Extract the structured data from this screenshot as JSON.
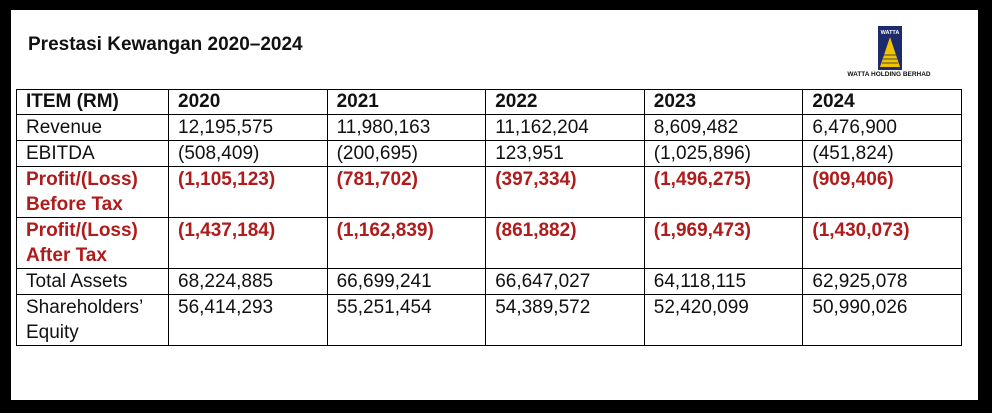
{
  "title": "Prestasi Kewangan 2020–2024",
  "logo": {
    "badge_text": "WATTA",
    "company": "WATTA HOLDING BERHAD",
    "colors": {
      "navy": "#1d2a6b",
      "gold": "#f2c400"
    }
  },
  "colors": {
    "highlight": "#b01b1b",
    "background": "#000000",
    "panel": "#ffffff"
  },
  "table": {
    "headers": [
      "ITEM (RM)",
      "2020",
      "2021",
      "2022",
      "2023",
      "2024"
    ],
    "rows": [
      {
        "label": [
          "Revenue"
        ],
        "values": [
          "12,195,575",
          "11,980,163",
          "11,162,204",
          "8,609,482",
          "6,476,900"
        ],
        "highlight": false
      },
      {
        "label": [
          "EBITDA"
        ],
        "values": [
          "(508,409)",
          "(200,695)",
          "123,951",
          "(1,025,896)",
          "(451,824)"
        ],
        "highlight": false
      },
      {
        "label": [
          "Profit/(Loss)",
          "Before Tax"
        ],
        "values": [
          "(1,105,123)",
          "(781,702)",
          "(397,334)",
          "(1,496,275)",
          "(909,406)"
        ],
        "highlight": true
      },
      {
        "label": [
          "Profit/(Loss)",
          "After Tax"
        ],
        "values": [
          "(1,437,184)",
          "(1,162,839)",
          "(861,882)",
          "(1,969,473)",
          "(1,430,073)"
        ],
        "highlight": true
      },
      {
        "label": [
          "Total Assets"
        ],
        "values": [
          "68,224,885",
          "66,699,241",
          "66,647,027",
          "64,118,115",
          "62,925,078"
        ],
        "highlight": false
      },
      {
        "label": [
          "Shareholders’",
          "Equity"
        ],
        "values": [
          "56,414,293",
          "55,251,454",
          "54,389,572",
          "52,420,099",
          "50,990,026"
        ],
        "highlight": false
      }
    ]
  }
}
